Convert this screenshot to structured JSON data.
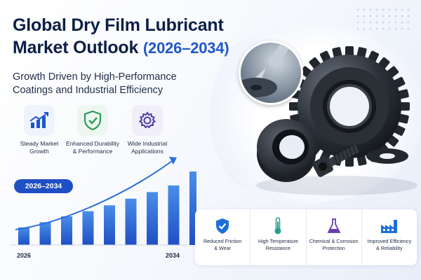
{
  "title": {
    "line1": "Global Dry Film Lubricant",
    "line2": "Market Outlook",
    "years": "(2026–2034)"
  },
  "subtitle": {
    "line1": "Growth Driven by High-Performance",
    "line2": "Coatings and Industrial Efficiency"
  },
  "features": [
    {
      "icon": "bar-growth-icon",
      "line1": "Steady Market",
      "line2": "Growth"
    },
    {
      "icon": "shield-check-icon",
      "line1": "Enhanced Durability",
      "line2": "& Performance"
    },
    {
      "icon": "gear-icon",
      "line1": "Wide Industrial",
      "line2": "Applications"
    }
  ],
  "growth": {
    "period_label": "2026–2034",
    "start_year": "2026",
    "end_year": "2034",
    "relative_bar_levels": [
      0.24,
      0.31,
      0.39,
      0.46,
      0.54,
      0.63,
      0.72,
      0.81,
      1.0
    ]
  },
  "benefits": [
    {
      "icon": "shield-check-icon",
      "line1": "Reduced Friction",
      "line2": "& Wear"
    },
    {
      "icon": "thermometer-icon",
      "line1": "High Temperature",
      "line2": "Resistance"
    },
    {
      "icon": "flask-icon",
      "line1": "Chemical & Corrosion",
      "line2": "Protection"
    },
    {
      "icon": "factory-icon",
      "line1": "Improved Efficiency",
      "line2": "& Reliability"
    }
  ],
  "colors": {
    "accent": "#1f57c9",
    "navy": "#0d1f45",
    "bar_dark": "#1f4fc4",
    "bar_light": "#4a8de8",
    "benefit_icon": "#1f6fd6",
    "thermo": "#2a9d8f",
    "flask": "#6a3fb0"
  }
}
